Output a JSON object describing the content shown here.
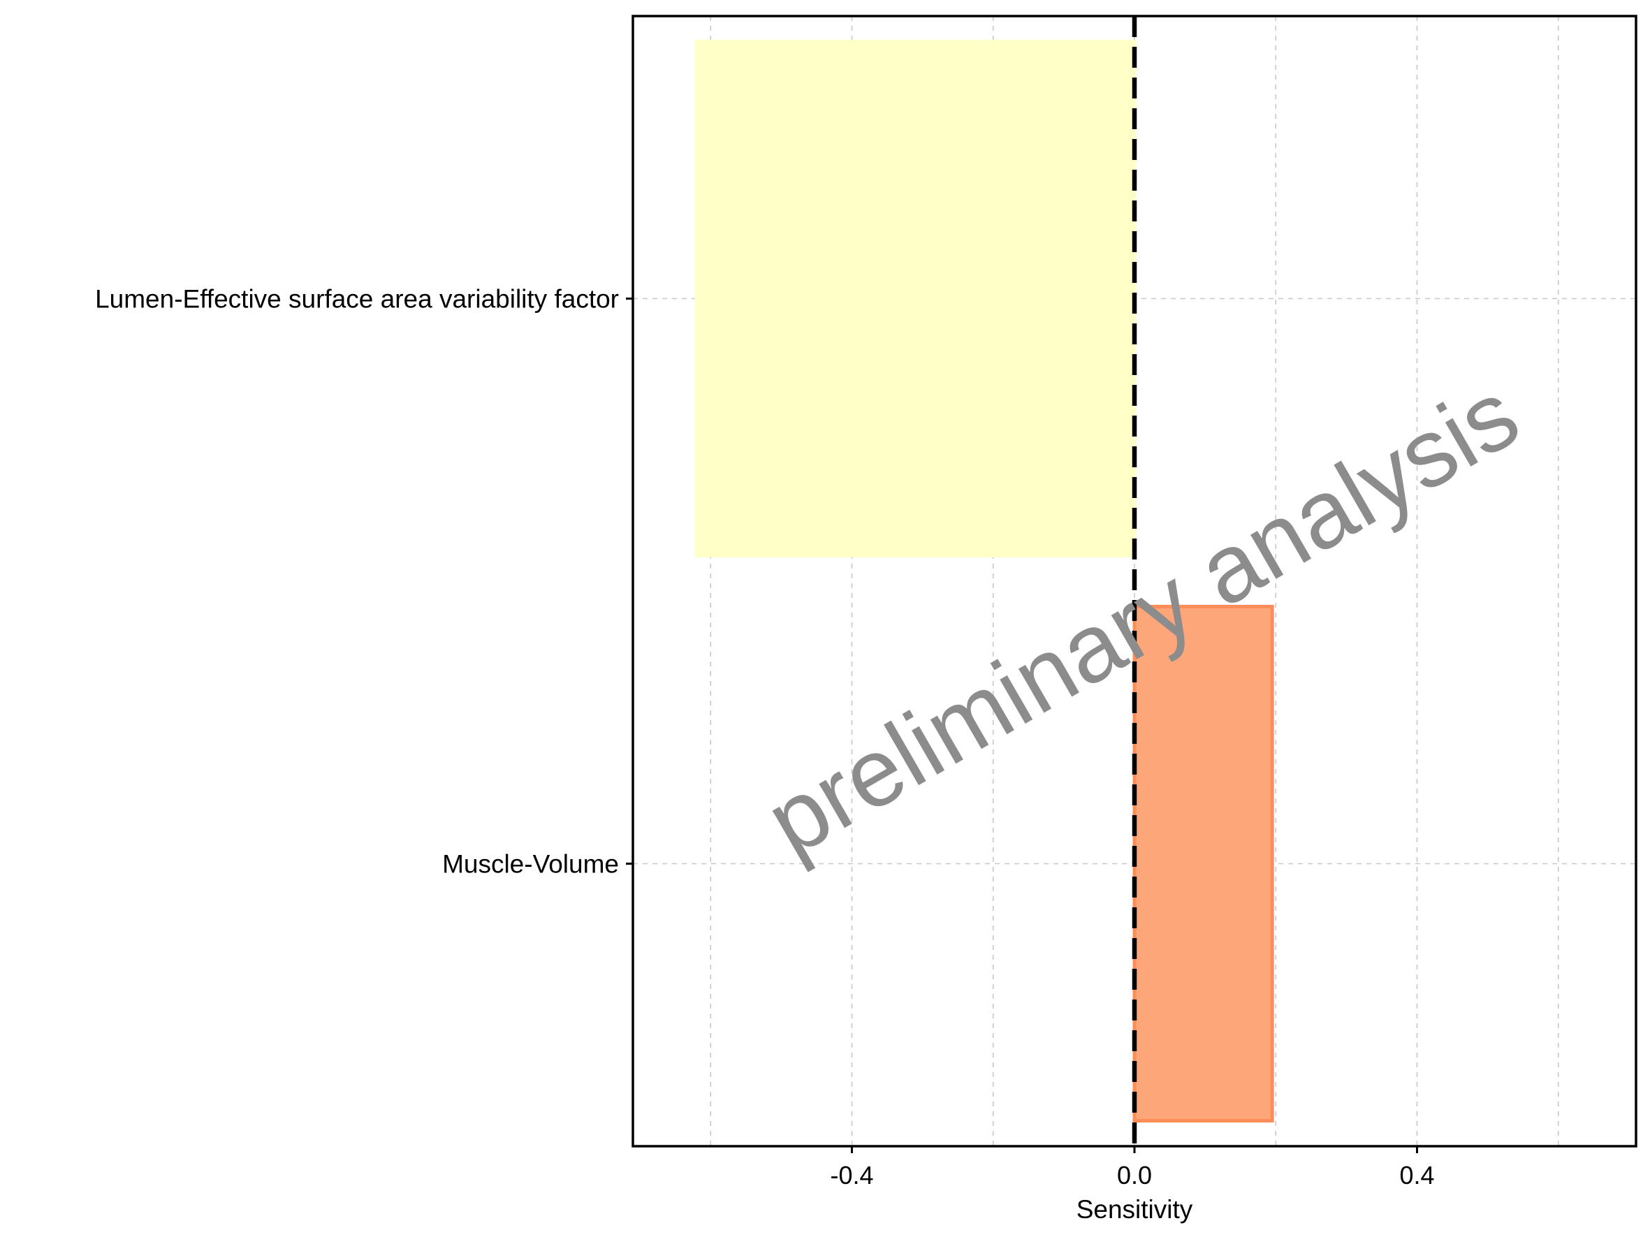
{
  "chart_data": {
    "type": "bar",
    "orientation": "horizontal",
    "categories": [
      "Lumen-Effective surface area variability factor",
      "Muscle-Volume"
    ],
    "values": [
      -0.62,
      0.195
    ],
    "bar_colors": [
      "#ffffc8",
      "#fca67a"
    ],
    "bar_edge_colors": [
      "#ffffc8",
      "#fc8d59"
    ],
    "xlabel": "Sensitivity",
    "ylabel": "",
    "xlim": [
      -0.71,
      0.71
    ],
    "xticks": [
      -0.4,
      0.0,
      0.4
    ],
    "xtick_labels": [
      "-0.4",
      "0.0",
      "0.4"
    ],
    "minor_gridlines": [
      -0.6,
      -0.2,
      0.2,
      0.6
    ],
    "reference_line": {
      "x": 0.0,
      "style": "dashed",
      "color": "#000000"
    },
    "grid": true,
    "legend": "none"
  },
  "watermark": "preliminary analysis"
}
